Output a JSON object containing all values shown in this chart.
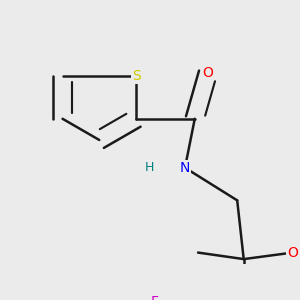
{
  "background_color": "#ebebeb",
  "bond_color": "#1a1a1a",
  "atom_colors": {
    "S": "#cccc00",
    "O": "#ff0000",
    "N": "#0000ff",
    "H": "#008080",
    "F": "#cc00cc"
  },
  "bond_width": 1.8,
  "figsize": [
    3.0,
    3.0
  ],
  "dpi": 100
}
